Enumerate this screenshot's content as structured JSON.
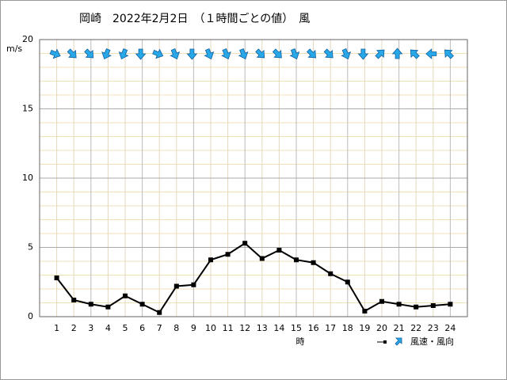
{
  "chart_data": {
    "type": "line",
    "title": "岡崎　2022年2月2日　（１時間ごとの値）　風",
    "y_label": "m/s",
    "x_label": "時",
    "legend_label": "風速・風向",
    "categories": [
      "1",
      "2",
      "3",
      "4",
      "5",
      "6",
      "7",
      "8",
      "9",
      "10",
      "11",
      "12",
      "13",
      "14",
      "15",
      "16",
      "17",
      "18",
      "19",
      "20",
      "21",
      "22",
      "23",
      "24"
    ],
    "series": [
      {
        "name": "風速",
        "color": "#000000",
        "values": [
          2.8,
          1.2,
          0.9,
          0.7,
          1.5,
          0.9,
          0.3,
          2.2,
          2.3,
          4.1,
          4.5,
          5.3,
          4.2,
          4.8,
          4.1,
          3.9,
          3.1,
          2.5,
          0.4,
          1.1,
          0.9,
          0.7,
          0.8,
          0.9
        ]
      }
    ],
    "direction_degrees": [
      112.5,
      135,
      135,
      202.5,
      202.5,
      180,
      112.5,
      157.5,
      180,
      157.5,
      157.5,
      157.5,
      135,
      135,
      157.5,
      135,
      135,
      157.5,
      180,
      45,
      0,
      315,
      270,
      315
    ],
    "direction_color": "#29a8e8",
    "ylim": [
      0,
      20
    ],
    "yticks": [
      0,
      5,
      10,
      15,
      20
    ],
    "minor_step": 1,
    "grid": true
  }
}
